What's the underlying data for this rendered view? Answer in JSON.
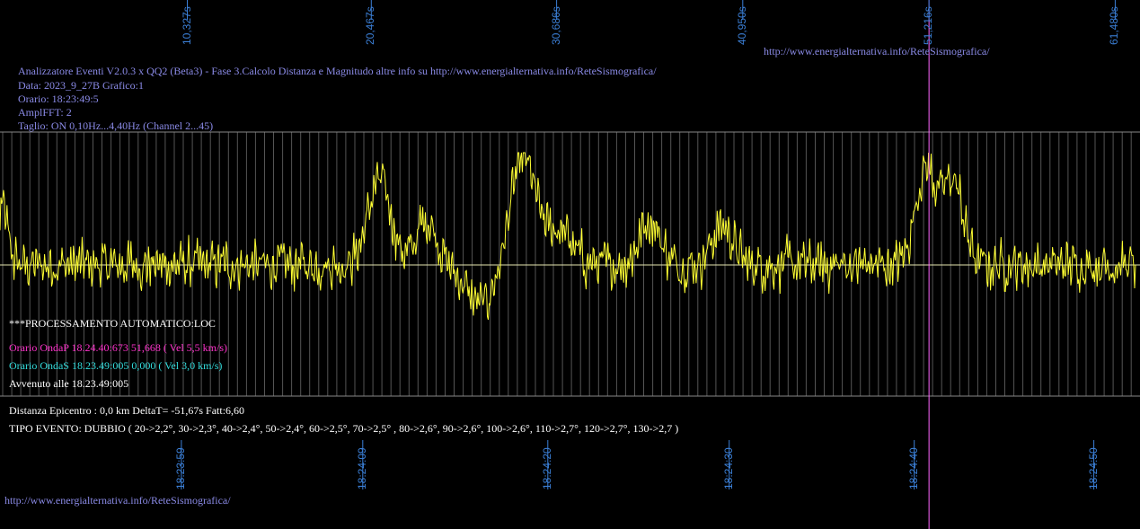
{
  "header": {
    "line1": "Analizzatore Eventi V2.0.3 x QQ2 (Beta3) - Fase 3.Calcolo Distanza e Magnitudo altre info su http://www.energialternativa.info/ReteSismografica/",
    "line2": "Data: 2023_9_27B Grafico:1",
    "line3": "Orario: 18:23:49:5",
    "line4": "AmplFFT: 2",
    "line5": "Taglio: ON 0,10Hz...4,40Hz       (Channel 2...45)"
  },
  "url_top": "http://www.energialternativa.info/ReteSismografica/",
  "url_bottom": "http://www.energialternativa.info/ReteSismografica/",
  "processing": {
    "title": "***PROCESSAMENTO AUTOMATICO:LOC",
    "onda_p": "Orario OndaP 18.24.40:673  51,668 ( Vel 5,5 km/s)",
    "onda_s": "Orario OndaS 18.23.49:005  0,000 ( Vel 3,0 km/s)",
    "avvenuto": "Avvenuto alle 18.23.49:005",
    "distanza": "Distanza Epicentro : 0,0 km DeltaT= -51,67s  Fatt:6,60",
    "tipo": "TIPO EVENTO: DUBBIO ( 20->2,2°, 30->2,3°, 40->2,4°, 50->2,4°, 60->2,5°, 70->2,5° , 80->2,6°, 90->2,6°, 100->2,6°, 110->2,7°, 120->2,7°, 130->2,7 )"
  },
  "colors": {
    "trace": "#ffff33",
    "baseline": "#e6e6b0",
    "grid": "#555555",
    "marker": "#ff66ff",
    "onda_p": "#ff33cc",
    "onda_s": "#33dddd",
    "white_text": "#ffffff",
    "axis_label": "#3b7fd6"
  },
  "chart_data": {
    "type": "line",
    "xlabel": "",
    "ylabel": "",
    "top_ticks": [
      {
        "label": "10,327s",
        "t": 10.327
      },
      {
        "label": "20,467s",
        "t": 20.467
      },
      {
        "label": "30,686s",
        "t": 30.686
      },
      {
        "label": "40,950s",
        "t": 40.95
      },
      {
        "label": "51,216s",
        "t": 51.216
      },
      {
        "label": "61,480s",
        "t": 61.48
      }
    ],
    "bottom_ticks": [
      {
        "label": "18:23:59",
        "t": 10.0
      },
      {
        "label": "18:24:09",
        "t": 20.0
      },
      {
        "label": "18:24:20",
        "t": 30.2
      },
      {
        "label": "18:24:30",
        "t": 40.2
      },
      {
        "label": "18:24:40",
        "t": 50.4
      },
      {
        "label": "18:24:50",
        "t": 60.3
      }
    ],
    "xlim": [
      0,
      62.6
    ],
    "ylim": [
      -1,
      1
    ],
    "marker_t": 51.216,
    "series": [
      {
        "peaks": [
          {
            "t": 0.0,
            "a": 0.55,
            "w": 0.5
          },
          {
            "t": 20.9,
            "a": 0.75,
            "w": 0.9
          },
          {
            "t": 23.5,
            "a": 0.4,
            "w": 0.8
          },
          {
            "t": 26.5,
            "a": -0.35,
            "w": 1.2
          },
          {
            "t": 28.8,
            "a": 0.95,
            "w": 1.0
          },
          {
            "t": 30.8,
            "a": 0.3,
            "w": 1.0
          },
          {
            "t": 35.8,
            "a": 0.4,
            "w": 0.8
          },
          {
            "t": 39.8,
            "a": 0.35,
            "w": 0.8
          },
          {
            "t": 51.0,
            "a": 0.85,
            "w": 0.8
          },
          {
            "t": 52.5,
            "a": 0.75,
            "w": 0.8
          }
        ],
        "noise": 0.22,
        "samples": 1300
      }
    ]
  }
}
